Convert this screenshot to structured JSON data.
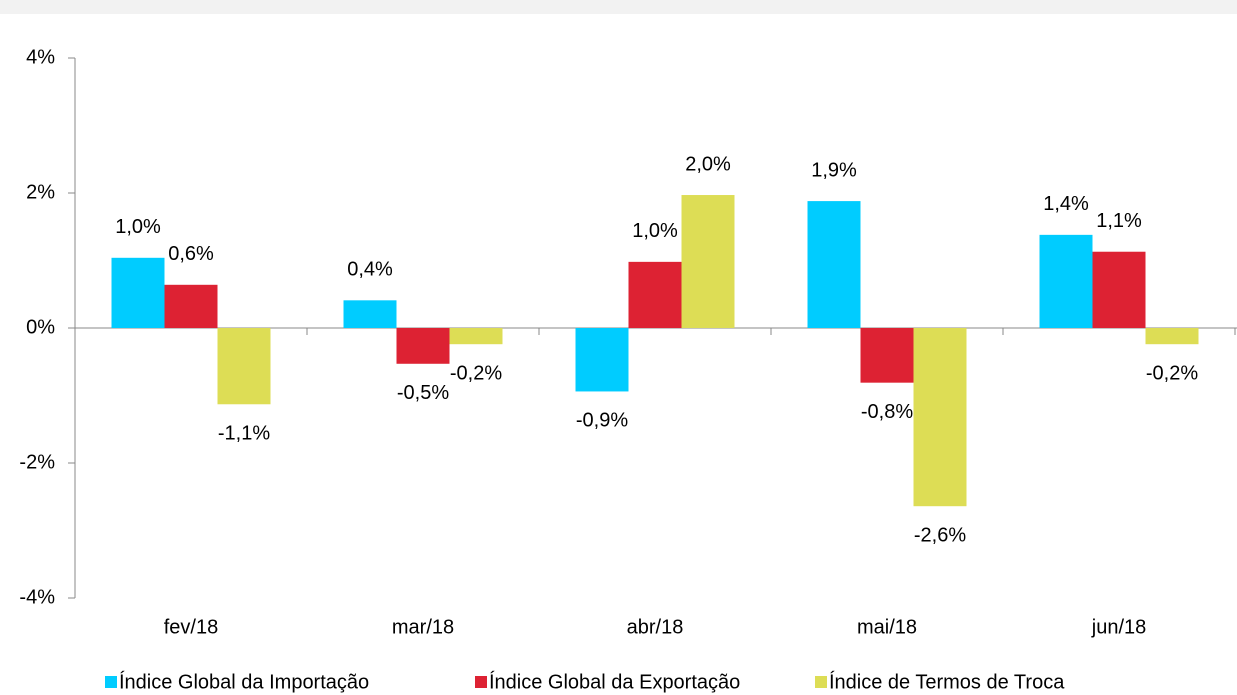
{
  "chart_data": {
    "type": "bar",
    "categories": [
      "fev/18",
      "mar/18",
      "abr/18",
      "mai/18",
      "jun/18"
    ],
    "series": [
      {
        "name": "Índice Global da Importação",
        "color": "#00ccff",
        "values": [
          1.04,
          0.41,
          -0.94,
          1.88,
          1.38
        ],
        "value_labels": [
          "1,0%",
          "0,4%",
          "-0,9%",
          "1,9%",
          "1,4%"
        ]
      },
      {
        "name": "Índice Global da Exportação",
        "color": "#dd2233",
        "values": [
          0.64,
          -0.53,
          0.98,
          -0.81,
          1.13
        ],
        "value_labels": [
          "0,6%",
          "-0,5%",
          "1,0%",
          "-0,8%",
          "1,1%"
        ]
      },
      {
        "name": "Índice de Termos de Troca",
        "color": "#dddd55",
        "values": [
          -1.13,
          -0.24,
          1.97,
          -2.64,
          -0.24
        ],
        "value_labels": [
          "-1,1%",
          "-0,2%",
          "2,0%",
          "-2,6%",
          "-0,2%"
        ]
      }
    ],
    "ylim": [
      -4,
      4
    ],
    "yticks": [
      {
        "value": -4,
        "label": "-4%"
      },
      {
        "value": -2,
        "label": "-2%"
      },
      {
        "value": 0,
        "label": "0%"
      },
      {
        "value": 2,
        "label": "2%"
      },
      {
        "value": 4,
        "label": "4%"
      }
    ],
    "legend": "bottom"
  }
}
